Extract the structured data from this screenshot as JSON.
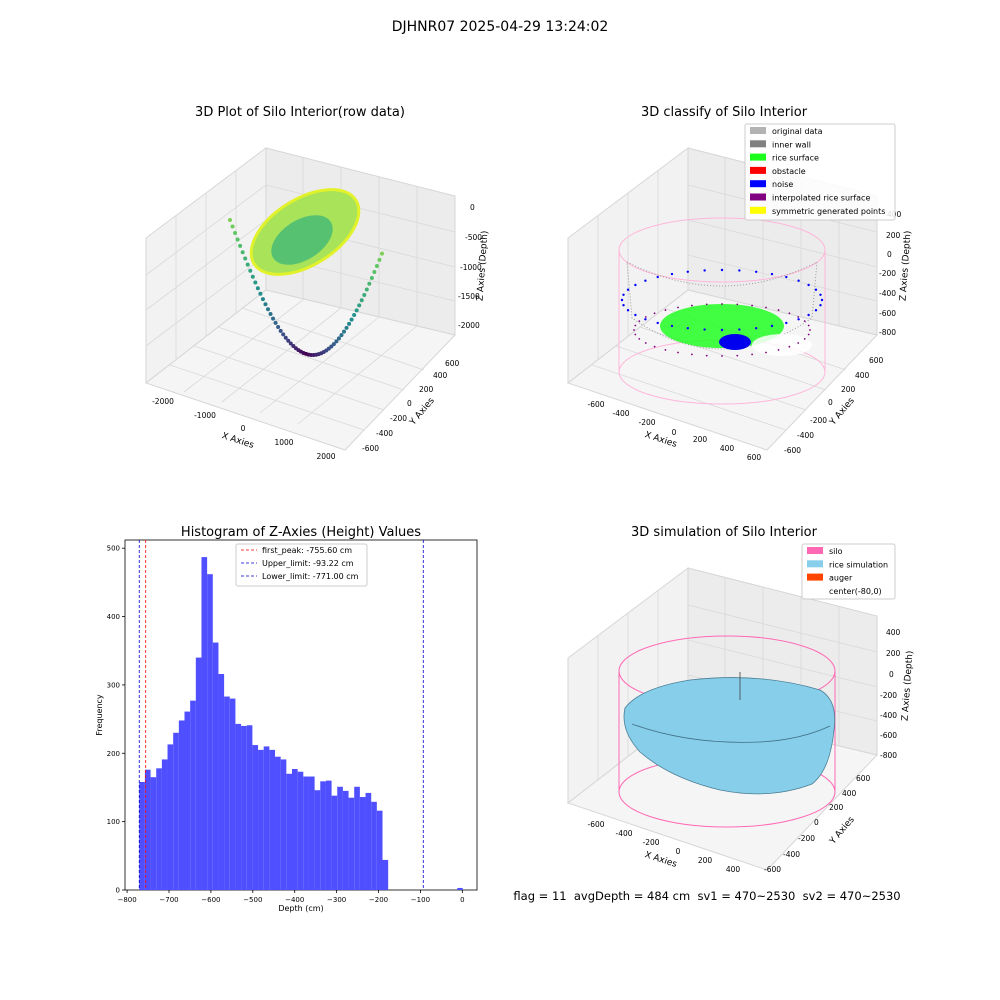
{
  "figure": {
    "suptitle": "DJHNR07 2025-04-29 13:24:02",
    "footer": "flag = 11  avgDepth = 484 cm  sv1 = 470~2530  sv2 = 470~2530"
  },
  "chart_data": [
    {
      "type": "scatter",
      "projection": "3d",
      "title": "3D Plot of Silo Interior(row data)",
      "xlabel": "X Axies",
      "ylabel": "Y Axies",
      "zlabel": "Z Axies (Depth)",
      "xticks": [
        "-2000",
        "-1000",
        "0",
        "1000",
        "2000"
      ],
      "yticks": [
        "-600",
        "-400",
        "-200",
        "0",
        "200",
        "400",
        "600"
      ],
      "zticks": [
        "0",
        "-500",
        "-1000",
        "-1500",
        "-2000"
      ],
      "colormap": "viridis",
      "grid": true
    },
    {
      "type": "scatter",
      "projection": "3d",
      "title": "3D classify of Silo Interior",
      "xlabel": "X Axies",
      "ylabel": "Y Axies",
      "zlabel": "Z Axies (Depth)",
      "xticks": [
        "-600",
        "-400",
        "-200",
        "0",
        "200",
        "400",
        "600"
      ],
      "yticks": [
        "-600",
        "-400",
        "-200",
        "0",
        "200",
        "400",
        "600"
      ],
      "zticks": [
        "400",
        "200",
        "0",
        "-200",
        "-400",
        "-600",
        "-800"
      ],
      "legend_position": "top-right",
      "legend": [
        {
          "label": "original data",
          "color": "#b3b3b3"
        },
        {
          "label": "inner wall",
          "color": "#808080"
        },
        {
          "label": "rice surface",
          "color": "#1cff1c"
        },
        {
          "label": "obstacle",
          "color": "#ff0000"
        },
        {
          "label": "noise",
          "color": "#0000ff"
        },
        {
          "label": "interpolated rice surface",
          "color": "#800080"
        },
        {
          "label": "symmetric generated points",
          "color": "#ffff00"
        }
      ],
      "grid": true
    },
    {
      "type": "bar",
      "title": "Histogram of Z-Axies (Height) Values",
      "xlabel": "Depth (cm)",
      "ylabel": "Frequency",
      "xlim": [
        -805,
        35
      ],
      "ylim": [
        0,
        512
      ],
      "xticks": [
        -800,
        -700,
        -600,
        -500,
        -400,
        -300,
        -200,
        -100,
        0
      ],
      "yticks": [
        0,
        100,
        200,
        300,
        400,
        500
      ],
      "bar_color": "#4f4fff",
      "bin_start": -771,
      "bin_width": 13.5,
      "values": [
        158,
        176,
        165,
        178,
        191,
        213,
        230,
        248,
        261,
        277,
        340,
        487,
        462,
        362,
        316,
        283,
        280,
        243,
        240,
        241,
        212,
        205,
        210,
        205,
        195,
        191,
        170,
        177,
        173,
        166,
        166,
        146,
        159,
        160,
        138,
        151,
        145,
        135,
        151,
        136,
        142,
        129,
        116,
        44
      ],
      "outlier_bar": {
        "x_start": -12,
        "x_end": 1,
        "value": 3
      },
      "reference_lines": [
        {
          "label": "first_peak: -755.60 cm",
          "x": -755.6,
          "color": "#ff0000"
        },
        {
          "label": "Upper_limit: -93.22 cm",
          "x": -93.22,
          "color": "#0000cc"
        },
        {
          "label": "Lower_limit: -771.00 cm",
          "x": -771.0,
          "color": "#0000cc"
        }
      ],
      "legend_position": "top-center",
      "grid": false
    },
    {
      "type": "surface",
      "projection": "3d",
      "title": "3D simulation of Silo Interior",
      "xlabel": "X Axies",
      "ylabel": "Y Axies",
      "zlabel": "Z Axies (Depth)",
      "xticks": [
        "-600",
        "-400",
        "-200",
        "0",
        "200",
        "400"
      ],
      "yticks": [
        "-600",
        "-400",
        "-200",
        "0",
        "200",
        "400",
        "600"
      ],
      "zticks": [
        "400",
        "200",
        "0",
        "-200",
        "-400",
        "-600",
        "-800"
      ],
      "legend_position": "top-right",
      "legend": [
        {
          "label": "silo",
          "color": "#ff69b4"
        },
        {
          "label": "rice simulation",
          "color": "#87ceeb"
        },
        {
          "label": "auger",
          "color": "#ff4500"
        },
        {
          "label": "center(-80,0)",
          "color": "#ffffff"
        }
      ],
      "grid": true
    }
  ]
}
